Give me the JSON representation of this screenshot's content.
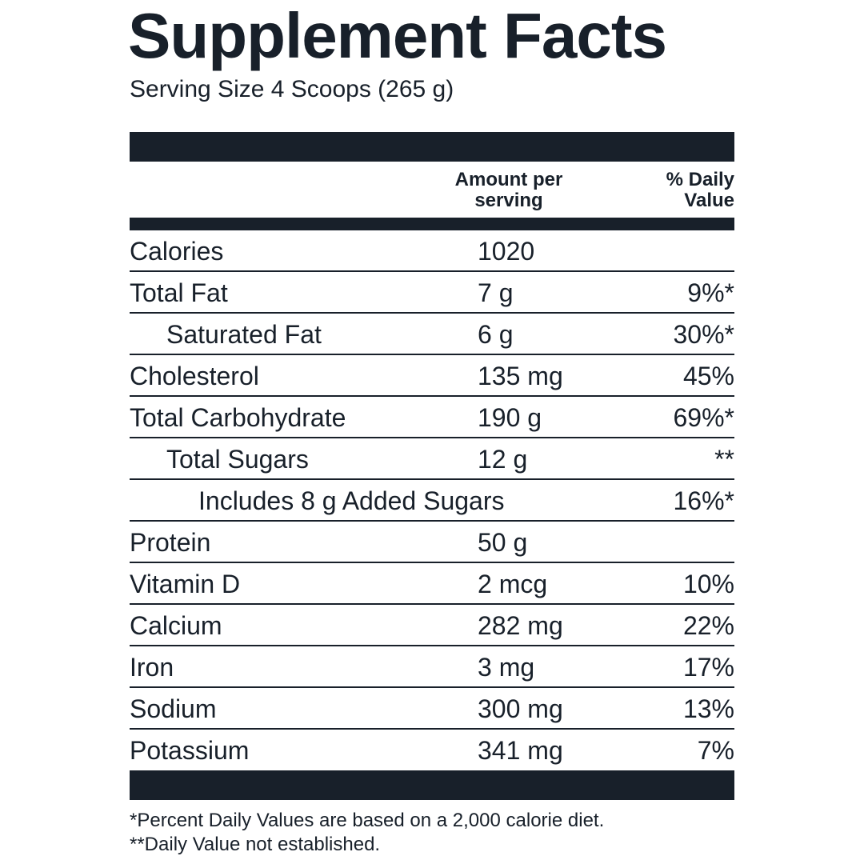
{
  "title": "Supplement Facts",
  "serving_size": "Serving Size 4 Scoops (265 g)",
  "table": {
    "header": {
      "amount": "Amount per serving",
      "daily_value": "% Daily Value"
    },
    "rows": [
      {
        "name": "Calories",
        "amount": "1020"
      },
      {
        "name": "Total Fat",
        "amount": "7 g",
        "daily_value": "9%*"
      },
      {
        "name": "Saturated Fat",
        "amount": "6 g",
        "daily_value": "30%*"
      },
      {
        "name": "Cholesterol",
        "amount": "135 mg",
        "daily_value": "45%"
      },
      {
        "name": "Total Carbohydrate",
        "amount": "190 g",
        "daily_value": "69%*"
      },
      {
        "name": "Total Sugars",
        "amount": "12 g",
        "daily_value": "**"
      },
      {
        "name": "Includes 8 g Added Sugars",
        "daily_value": "16%*"
      },
      {
        "name": "Protein",
        "amount": "50 g"
      },
      {
        "name": "Vitamin D",
        "amount": "2 mcg",
        "daily_value": "10%"
      },
      {
        "name": "Calcium",
        "amount": "282 mg",
        "daily_value": "22%"
      },
      {
        "name": "Iron",
        "amount": "3 mg",
        "daily_value": "17%"
      },
      {
        "name": "Sodium",
        "amount": "300 mg",
        "daily_value": "13%"
      },
      {
        "name": "Potassium",
        "amount": "341 mg",
        "daily_value": "7%"
      }
    ]
  },
  "footnotes": [
    "*Percent Daily Values are based on a 2,000 calorie diet.",
    "**Daily Value not established."
  ]
}
